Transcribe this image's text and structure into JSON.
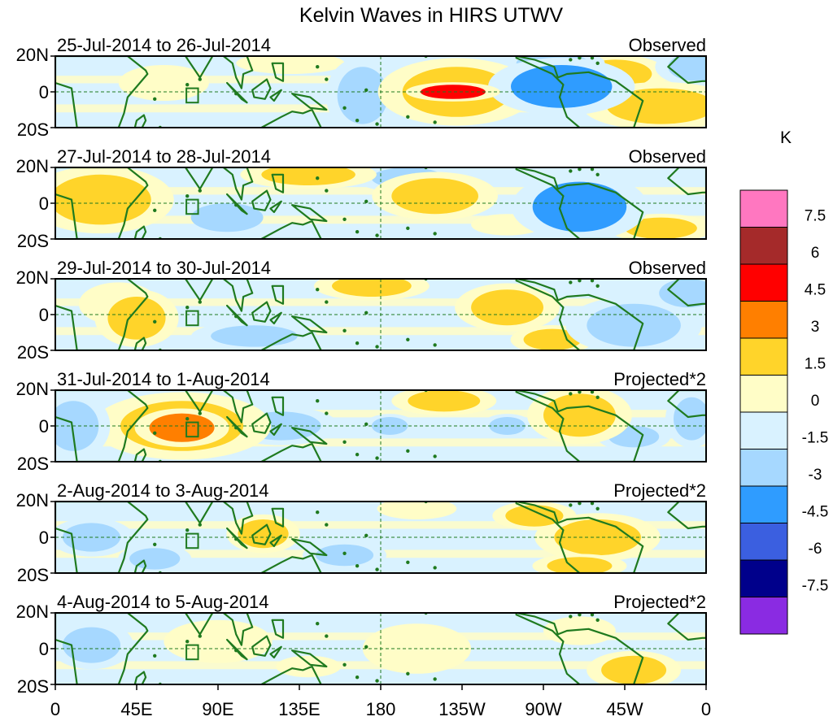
{
  "chart_data": {
    "type": "heatmap",
    "title": "Kelvin Waves in HIRS UTWV",
    "unit_label": "K",
    "x_ticks": [
      "0",
      "45E",
      "90E",
      "135E",
      "180",
      "135W",
      "90W",
      "45W",
      "0"
    ],
    "y_ticks": [
      "20N",
      "0",
      "20S"
    ],
    "xlim": [
      0,
      360
    ],
    "ylim": [
      -20,
      20
    ],
    "colorbar": {
      "levels": [
        "7.5",
        "6",
        "4.5",
        "3",
        "1.5",
        "0",
        "-1.5",
        "-3",
        "-4.5",
        "-6",
        "-7.5"
      ],
      "colors": [
        "#ff77c0",
        "#a52a2a",
        "#ff0000",
        "#ff7f00",
        "#ffd42a",
        "#fffdc7",
        "#d9f2ff",
        "#a6d8ff",
        "#2f9cff",
        "#3b5fe0",
        "#00008b",
        "#8a2be2"
      ]
    },
    "panels": [
      {
        "period": "25-Jul-2014 to 26-Jul-2014",
        "kind": "Observed",
        "anomalies": [
          {
            "lon": 220,
            "lat": 0,
            "wlon": 18,
            "hlat": 4,
            "value": 5
          },
          {
            "lon": 222,
            "lat": 0,
            "wlon": 30,
            "hlat": 14,
            "value": 2.2
          },
          {
            "lon": 280,
            "lat": 3,
            "wlon": 28,
            "hlat": 12,
            "value": -3.2
          },
          {
            "lon": 275,
            "lat": 16,
            "wlon": 20,
            "hlat": 6,
            "value": -2
          },
          {
            "lon": 170,
            "lat": -2,
            "wlon": 14,
            "hlat": 16,
            "value": -1.8
          },
          {
            "lon": 335,
            "lat": -8,
            "wlon": 30,
            "hlat": 10,
            "value": 1.8
          },
          {
            "lon": 310,
            "lat": 10,
            "wlon": 20,
            "hlat": 8,
            "value": 1.6
          },
          {
            "lon": 60,
            "lat": 5,
            "wlon": 25,
            "hlat": 10,
            "value": 1
          },
          {
            "lon": 130,
            "lat": 16,
            "wlon": 30,
            "hlat": 6,
            "value": 1.2
          },
          {
            "lon": 355,
            "lat": 14,
            "wlon": 16,
            "hlat": 8,
            "value": -1.6
          }
        ]
      },
      {
        "period": "27-Jul-2014 to 28-Jul-2014",
        "kind": "Observed",
        "anomalies": [
          {
            "lon": 290,
            "lat": -2,
            "wlon": 26,
            "hlat": 14,
            "value": -3.2
          },
          {
            "lon": 25,
            "lat": 2,
            "wlon": 28,
            "hlat": 14,
            "value": 1.8
          },
          {
            "lon": 210,
            "lat": 4,
            "wlon": 24,
            "hlat": 10,
            "value": 1.7
          },
          {
            "lon": 195,
            "lat": 14,
            "wlon": 20,
            "hlat": 6,
            "value": -1.6
          },
          {
            "lon": 140,
            "lat": 16,
            "wlon": 26,
            "hlat": 6,
            "value": 1.6
          },
          {
            "lon": 95,
            "lat": -8,
            "wlon": 20,
            "hlat": 8,
            "value": -1.5
          },
          {
            "lon": 335,
            "lat": -14,
            "wlon": 20,
            "hlat": 6,
            "value": 1.6
          },
          {
            "lon": 250,
            "lat": -12,
            "wlon": 20,
            "hlat": 6,
            "value": 1.5
          }
        ]
      },
      {
        "period": "29-Jul-2014 to 30-Jul-2014",
        "kind": "Observed",
        "anomalies": [
          {
            "lon": 45,
            "lat": -2,
            "wlon": 16,
            "hlat": 12,
            "value": 2
          },
          {
            "lon": 35,
            "lat": 6,
            "wlon": 22,
            "hlat": 12,
            "value": 1.2
          },
          {
            "lon": 320,
            "lat": -6,
            "wlon": 26,
            "hlat": 12,
            "value": -2
          },
          {
            "lon": 350,
            "lat": 12,
            "wlon": 16,
            "hlat": 8,
            "value": -2
          },
          {
            "lon": 250,
            "lat": 4,
            "wlon": 20,
            "hlat": 10,
            "value": 1.7
          },
          {
            "lon": 175,
            "lat": 16,
            "wlon": 22,
            "hlat": 6,
            "value": 1.6
          },
          {
            "lon": 110,
            "lat": -12,
            "wlon": 24,
            "hlat": 6,
            "value": -1.6
          },
          {
            "lon": 275,
            "lat": -14,
            "wlon": 16,
            "hlat": 6,
            "value": 1.6
          }
        ]
      },
      {
        "period": "31-Jul-2014 to 1-Aug-2014",
        "kind": "Projected*2",
        "anomalies": [
          {
            "lon": 70,
            "lat": -1,
            "wlon": 18,
            "hlat": 8,
            "value": 4
          },
          {
            "lon": 70,
            "lat": 0,
            "wlon": 34,
            "hlat": 14,
            "value": 2.2
          },
          {
            "lon": 125,
            "lat": 0,
            "wlon": 22,
            "hlat": 8,
            "value": -2
          },
          {
            "lon": 10,
            "lat": 0,
            "wlon": 14,
            "hlat": 14,
            "value": -2.4
          },
          {
            "lon": 352,
            "lat": 4,
            "wlon": 10,
            "hlat": 12,
            "value": -2
          },
          {
            "lon": 290,
            "lat": 6,
            "wlon": 20,
            "hlat": 12,
            "value": 1.8
          },
          {
            "lon": 215,
            "lat": 14,
            "wlon": 20,
            "hlat": 6,
            "value": 1.6
          },
          {
            "lon": 250,
            "lat": 0,
            "wlon": 10,
            "hlat": 5,
            "value": -1.6
          },
          {
            "lon": 185,
            "lat": 0,
            "wlon": 10,
            "hlat": 5,
            "value": -1.6
          },
          {
            "lon": 320,
            "lat": -6,
            "wlon": 14,
            "hlat": 6,
            "value": -1.6
          }
        ]
      },
      {
        "period": "2-Aug-2014 to 3-Aug-2014",
        "kind": "Projected*2",
        "anomalies": [
          {
            "lon": 20,
            "lat": 0,
            "wlon": 16,
            "hlat": 8,
            "value": -1.8
          },
          {
            "lon": 115,
            "lat": 2,
            "wlon": 14,
            "hlat": 8,
            "value": 1.8
          },
          {
            "lon": 290,
            "lat": -16,
            "wlon": 18,
            "hlat": 5,
            "value": 2
          },
          {
            "lon": 300,
            "lat": 0,
            "wlon": 24,
            "hlat": 10,
            "value": 1.6
          },
          {
            "lon": 265,
            "lat": 12,
            "wlon": 16,
            "hlat": 6,
            "value": 1.6
          },
          {
            "lon": 200,
            "lat": 16,
            "wlon": 22,
            "hlat": 6,
            "value": 1.5
          },
          {
            "lon": 55,
            "lat": -12,
            "wlon": 14,
            "hlat": 6,
            "value": -1.6
          },
          {
            "lon": 160,
            "lat": -10,
            "wlon": 16,
            "hlat": 6,
            "value": -1.6
          }
        ]
      },
      {
        "period": "4-Aug-2014 to 5-Aug-2014",
        "kind": "Projected*2",
        "anomalies": [
          {
            "lon": 320,
            "lat": -12,
            "wlon": 18,
            "hlat": 8,
            "value": 1.8
          },
          {
            "lon": 200,
            "lat": 0,
            "wlon": 30,
            "hlat": 14,
            "value": 1.1
          },
          {
            "lon": 90,
            "lat": 4,
            "wlon": 30,
            "hlat": 12,
            "value": 1
          },
          {
            "lon": 290,
            "lat": 10,
            "wlon": 20,
            "hlat": 8,
            "value": 1.2
          },
          {
            "lon": 20,
            "lat": 2,
            "wlon": 16,
            "hlat": 10,
            "value": -1.6
          },
          {
            "lon": 140,
            "lat": -10,
            "wlon": 18,
            "hlat": 6,
            "value": 1.2
          }
        ]
      }
    ]
  }
}
